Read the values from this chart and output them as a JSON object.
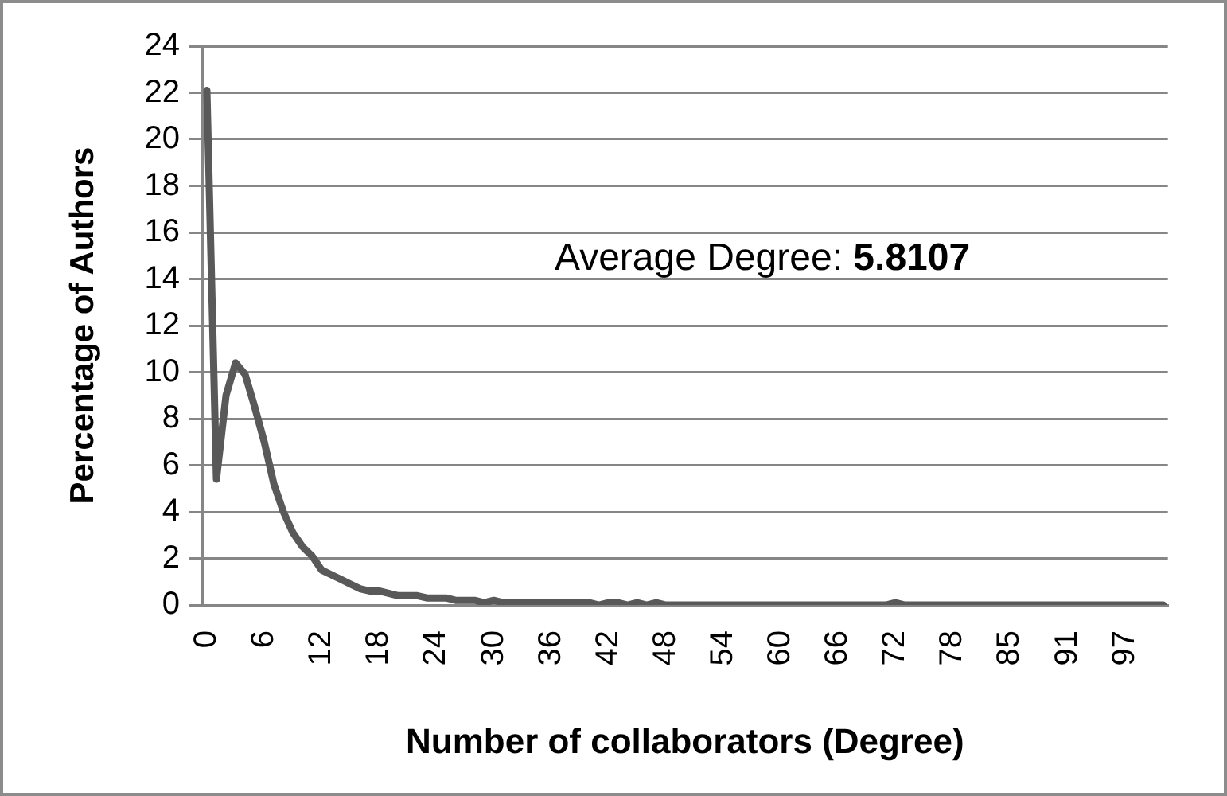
{
  "chart_data": {
    "type": "line",
    "xlabel": "Number of collaborators (Degree)",
    "ylabel": "Percentage of Authors",
    "annotations": [
      "Average Degree: 5.8107"
    ],
    "categories": [
      "0",
      null,
      null,
      null,
      null,
      null,
      "6",
      null,
      null,
      null,
      null,
      null,
      "12",
      null,
      null,
      null,
      null,
      null,
      "18",
      null,
      null,
      null,
      null,
      null,
      "24",
      null,
      null,
      null,
      null,
      null,
      "30",
      null,
      null,
      null,
      null,
      null,
      "36",
      null,
      null,
      null,
      null,
      null,
      "42",
      null,
      null,
      null,
      null,
      null,
      "48",
      null,
      null,
      null,
      null,
      null,
      "54",
      null,
      null,
      null,
      null,
      null,
      "60",
      null,
      null,
      null,
      null,
      null,
      "66",
      null,
      null,
      null,
      null,
      null,
      "72",
      null,
      null,
      null,
      null,
      null,
      "78",
      null,
      null,
      null,
      null,
      null,
      "85",
      null,
      null,
      null,
      null,
      null,
      "91",
      null,
      null,
      null,
      null,
      null,
      "97",
      null,
      null,
      null,
      null
    ],
    "values": [
      22.1,
      5.4,
      9.0,
      10.4,
      9.9,
      8.5,
      7.0,
      5.2,
      4.0,
      3.1,
      2.5,
      2.1,
      1.5,
      1.3,
      1.1,
      0.9,
      0.7,
      0.6,
      0.6,
      0.5,
      0.4,
      0.4,
      0.4,
      0.3,
      0.3,
      0.3,
      0.2,
      0.2,
      0.2,
      0.1,
      0.2,
      0.1,
      0.1,
      0.1,
      0.1,
      0.1,
      0.1,
      0.1,
      0.1,
      0.1,
      0.1,
      0,
      0.1,
      0.1,
      0,
      0.1,
      0,
      0.1,
      0,
      0,
      0,
      0,
      0,
      0,
      0,
      0,
      0,
      0,
      0,
      0,
      0,
      0,
      0,
      0,
      0,
      0,
      0,
      0,
      0,
      0,
      0,
      0,
      0.1,
      0,
      0,
      0,
      0,
      0,
      0,
      0,
      0,
      0,
      0,
      0,
      0,
      0,
      0,
      0,
      0,
      0,
      0,
      0,
      0,
      0,
      0,
      0,
      0,
      0,
      0,
      0,
      0
    ],
    "color": "#595959",
    "ylim": [
      0,
      24
    ],
    "yticks": [
      0,
      2,
      4,
      6,
      8,
      10,
      12,
      14,
      16,
      18,
      20,
      22,
      24
    ],
    "grid": "y"
  }
}
